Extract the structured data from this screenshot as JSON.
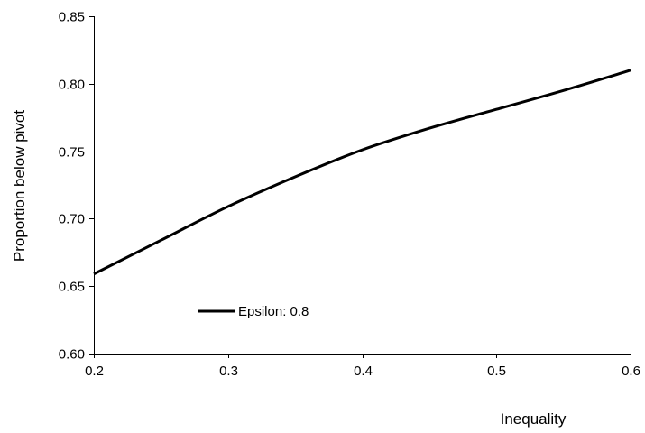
{
  "chart_data": {
    "type": "line",
    "title": "",
    "xlabel": "Inequality",
    "ylabel": "Proportion below pivot",
    "xlim": [
      0.2,
      0.6
    ],
    "ylim": [
      0.6,
      0.85
    ],
    "x_ticks": [
      "0.2",
      "0.3",
      "0.4",
      "0.5",
      "0.6"
    ],
    "y_ticks": [
      "0.60",
      "0.65",
      "0.70",
      "0.75",
      "0.80",
      "0.85"
    ],
    "grid": false,
    "legend_position": "bottom-left",
    "series": [
      {
        "name": "Epsilon: 0.8",
        "color": "#000000",
        "x": [
          0.2,
          0.25,
          0.3,
          0.35,
          0.4,
          0.45,
          0.5,
          0.55,
          0.6
        ],
        "y": [
          0.659,
          0.684,
          0.709,
          0.731,
          0.751,
          0.767,
          0.781,
          0.795,
          0.81
        ]
      }
    ]
  }
}
